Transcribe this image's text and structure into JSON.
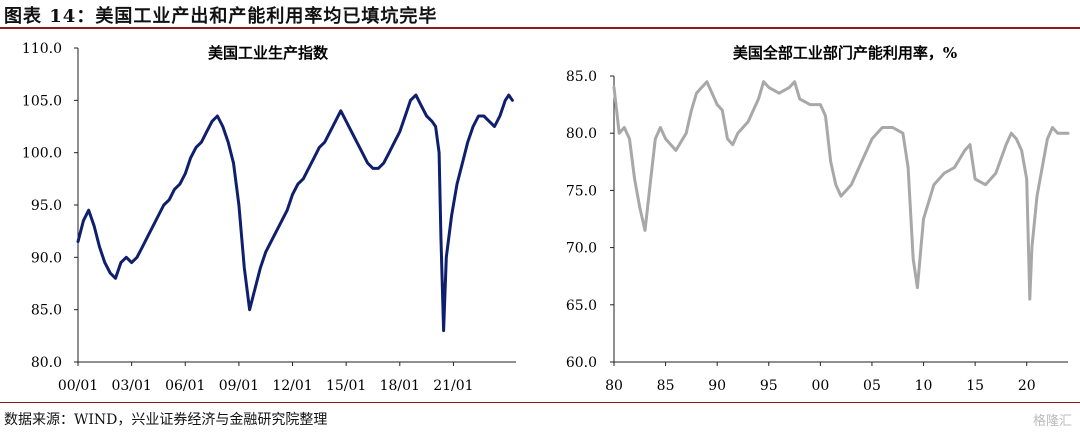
{
  "figure": {
    "title": "图表 14：美国工业产出和产能利用率均已填坑完毕",
    "source": "数据来源：WIND，兴业证券经济与金融研究院整理",
    "watermark": "格隆汇"
  },
  "chart_data": [
    {
      "type": "line",
      "title": "美国工业生产指数",
      "color": "#0f1f6e",
      "ylim": [
        80,
        110
      ],
      "yticks": [
        "80.0",
        "85.0",
        "90.0",
        "95.0",
        "100.0",
        "105.0",
        "110.0"
      ],
      "xlim": [
        2000,
        2024.5
      ],
      "xticks": [
        {
          "v": 2000,
          "label": "00/01"
        },
        {
          "v": 2003,
          "label": "03/01"
        },
        {
          "v": 2006,
          "label": "06/01"
        },
        {
          "v": 2009,
          "label": "09/01"
        },
        {
          "v": 2012,
          "label": "12/01"
        },
        {
          "v": 2015,
          "label": "15/01"
        },
        {
          "v": 2018,
          "label": "18/01"
        },
        {
          "v": 2021,
          "label": "21/01"
        }
      ],
      "x": [
        2000.0,
        2000.3,
        2000.6,
        2000.9,
        2001.2,
        2001.5,
        2001.8,
        2002.1,
        2002.4,
        2002.7,
        2003.0,
        2003.3,
        2003.6,
        2003.9,
        2004.2,
        2004.5,
        2004.8,
        2005.1,
        2005.4,
        2005.7,
        2006.0,
        2006.3,
        2006.6,
        2006.9,
        2007.2,
        2007.5,
        2007.8,
        2008.1,
        2008.4,
        2008.7,
        2009.0,
        2009.3,
        2009.6,
        2009.9,
        2010.2,
        2010.5,
        2010.8,
        2011.1,
        2011.4,
        2011.7,
        2012.0,
        2012.3,
        2012.6,
        2012.9,
        2013.2,
        2013.5,
        2013.8,
        2014.1,
        2014.4,
        2014.7,
        2015.0,
        2015.3,
        2015.6,
        2015.9,
        2016.2,
        2016.5,
        2016.8,
        2017.1,
        2017.4,
        2017.7,
        2018.0,
        2018.3,
        2018.6,
        2018.9,
        2019.2,
        2019.5,
        2019.8,
        2020.0,
        2020.2,
        2020.3,
        2020.45,
        2020.6,
        2020.9,
        2021.2,
        2021.5,
        2021.8,
        2022.1,
        2022.4,
        2022.7,
        2023.0,
        2023.3,
        2023.6,
        2023.9,
        2024.1,
        2024.3
      ],
      "values": [
        91.5,
        93.5,
        94.5,
        93.0,
        91.0,
        89.5,
        88.5,
        88.0,
        89.5,
        90.0,
        89.5,
        90.0,
        91.0,
        92.0,
        93.0,
        94.0,
        95.0,
        95.5,
        96.5,
        97.0,
        98.0,
        99.5,
        100.5,
        101.0,
        102.0,
        103.0,
        103.5,
        102.5,
        101.0,
        99.0,
        95.0,
        89.0,
        85.0,
        87.0,
        89.0,
        90.5,
        91.5,
        92.5,
        93.5,
        94.5,
        96.0,
        97.0,
        97.5,
        98.5,
        99.5,
        100.5,
        101.0,
        102.0,
        103.0,
        104.0,
        103.0,
        102.0,
        101.0,
        100.0,
        99.0,
        98.5,
        98.5,
        99.0,
        100.0,
        101.0,
        102.0,
        103.5,
        105.0,
        105.5,
        104.5,
        103.5,
        103.0,
        102.5,
        100.0,
        92.0,
        83.0,
        90.0,
        94.0,
        97.0,
        99.0,
        101.0,
        102.5,
        103.5,
        103.5,
        103.0,
        102.5,
        103.5,
        105.0,
        105.5,
        105.0
      ]
    },
    {
      "type": "line",
      "title": "美国全部工业部门产能利用率，%",
      "color": "#a8a8a8",
      "ylim": [
        60,
        85
      ],
      "yticks": [
        "60.0",
        "65.0",
        "70.0",
        "75.0",
        "80.0",
        "85.0"
      ],
      "xlim": [
        1980,
        2024
      ],
      "xticks": [
        {
          "v": 1980,
          "label": "80"
        },
        {
          "v": 1985,
          "label": "85"
        },
        {
          "v": 1990,
          "label": "90"
        },
        {
          "v": 1995,
          "label": "95"
        },
        {
          "v": 2000,
          "label": "00"
        },
        {
          "v": 2005,
          "label": "05"
        },
        {
          "v": 2010,
          "label": "10"
        },
        {
          "v": 2015,
          "label": "15"
        },
        {
          "v": 2020,
          "label": "20"
        }
      ],
      "x": [
        1980.0,
        1980.5,
        1981.0,
        1981.5,
        1982.0,
        1982.5,
        1983.0,
        1983.5,
        1984.0,
        1984.5,
        1985.0,
        1986.0,
        1987.0,
        1987.5,
        1988.0,
        1988.5,
        1989.0,
        1990.0,
        1990.5,
        1991.0,
        1991.5,
        1992.0,
        1993.0,
        1994.0,
        1994.5,
        1995.0,
        1996.0,
        1997.0,
        1997.5,
        1998.0,
        1999.0,
        2000.0,
        2000.5,
        2001.0,
        2001.5,
        2002.0,
        2003.0,
        2004.0,
        2005.0,
        2006.0,
        2007.0,
        2008.0,
        2008.5,
        2009.0,
        2009.4,
        2010.0,
        2011.0,
        2012.0,
        2013.0,
        2014.0,
        2014.5,
        2015.0,
        2016.0,
        2017.0,
        2018.0,
        2018.5,
        2019.0,
        2019.5,
        2020.0,
        2020.3,
        2020.5,
        2021.0,
        2021.5,
        2022.0,
        2022.5,
        2023.0,
        2023.5,
        2024.0
      ],
      "values": [
        84.0,
        80.0,
        80.5,
        79.5,
        76.0,
        73.5,
        71.5,
        75.5,
        79.5,
        80.5,
        79.5,
        78.5,
        80.0,
        82.0,
        83.5,
        84.0,
        84.5,
        82.5,
        82.0,
        79.5,
        79.0,
        80.0,
        81.0,
        83.0,
        84.5,
        84.0,
        83.5,
        84.0,
        84.5,
        83.0,
        82.5,
        82.5,
        81.5,
        77.5,
        75.5,
        74.5,
        75.5,
        77.5,
        79.5,
        80.5,
        80.5,
        80.0,
        77.0,
        69.0,
        66.5,
        72.5,
        75.5,
        76.5,
        77.0,
        78.5,
        79.0,
        76.0,
        75.5,
        76.5,
        79.0,
        80.0,
        79.5,
        78.5,
        76.0,
        65.5,
        70.0,
        74.5,
        77.0,
        79.5,
        80.5,
        80.0,
        80.0,
        80.0
      ]
    }
  ]
}
